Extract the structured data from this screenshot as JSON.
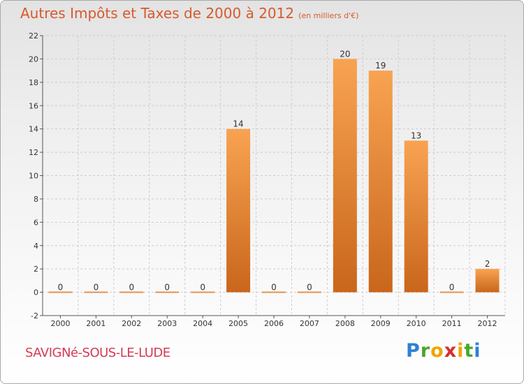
{
  "header": {
    "title": "Autres Impôts et Taxes de 2000 à 2012",
    "unit": "(en milliers d'€)"
  },
  "footer": {
    "commune": "SAVIGNé-SOUS-LE-LUDE",
    "logo": [
      "P",
      "r",
      "o",
      "x",
      "i",
      "t",
      "i"
    ]
  },
  "colors": {
    "title": "#d75a2c",
    "commune": "#d43b55",
    "bar_light": "#f8a352",
    "bar_dark": "#c9661b",
    "grid": "#cccccc"
  },
  "chart_data": {
    "type": "bar",
    "title": "Autres Impôts et Taxes de 2000 à 2012",
    "subtitle": "(en milliers d'€)",
    "categories": [
      "2000",
      "2001",
      "2002",
      "2003",
      "2004",
      "2005",
      "2006",
      "2007",
      "2008",
      "2009",
      "2010",
      "2011",
      "2012"
    ],
    "values": [
      0,
      0,
      0,
      0,
      0,
      14,
      0,
      0,
      20,
      19,
      13,
      0,
      2
    ],
    "ylim": [
      -2,
      22
    ],
    "yticks": [
      -2,
      0,
      2,
      4,
      6,
      8,
      10,
      12,
      14,
      16,
      18,
      20,
      22
    ],
    "grid": true,
    "legend": "none"
  }
}
